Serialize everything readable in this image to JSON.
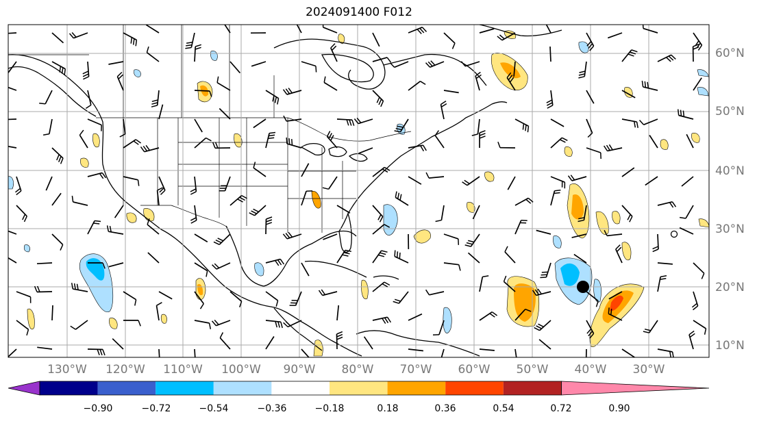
{
  "title": "2024091400 F012",
  "latitude_labels": [
    "60°N",
    "50°N",
    "40°N",
    "30°N",
    "20°N",
    "10°N"
  ],
  "longitude_labels": [
    "130°W",
    "120°W",
    "110°W",
    "100°W",
    "90°W",
    "80°W",
    "70°W",
    "60°W",
    "50°W",
    "40°W",
    "30°W"
  ],
  "colorbar": {
    "ticks": [
      "−0.90",
      "−0.72",
      "−0.54",
      "−0.36",
      "−0.18",
      "0.18",
      "0.36",
      "0.54",
      "0.72",
      "0.90"
    ],
    "colors": [
      "#9933cc",
      "#00008b",
      "#3a5fcd",
      "#00bfff",
      "#aee0ff",
      "#ffffff",
      "#ffe680",
      "#ffa500",
      "#ff4500",
      "#b22222",
      "#ff88aa"
    ]
  },
  "colors": {
    "land_outline": "#000000",
    "grid": "#aaaaaa",
    "positive_light": "#ffe680",
    "positive_mid": "#ffa500",
    "positive_strong": "#ff4500",
    "negative_light": "#aee0ff",
    "negative_mid": "#00bfff"
  },
  "marker": {
    "name": "storm-center",
    "lat": 20,
    "lon": -41
  }
}
